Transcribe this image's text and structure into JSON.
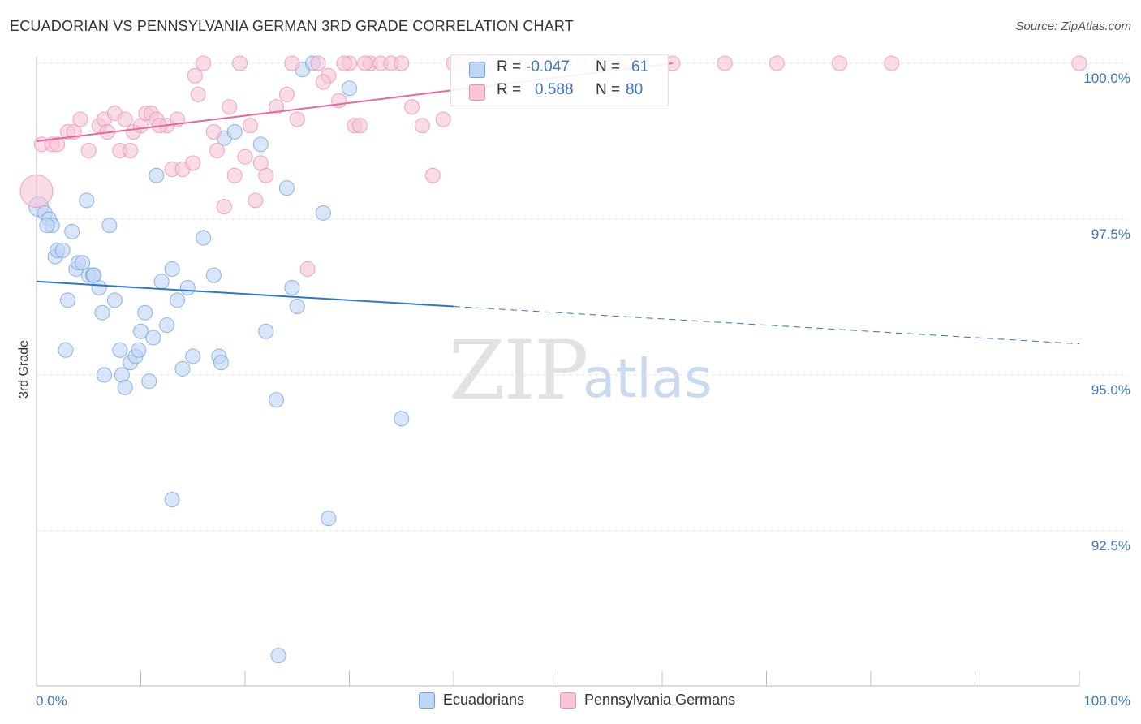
{
  "title": "ECUADORIAN VS PENNSYLVANIA GERMAN 3RD GRADE CORRELATION CHART",
  "source": "Source: ZipAtlas.com",
  "watermark": {
    "zip": "ZIP",
    "atlas": "atlas"
  },
  "colors": {
    "blue": "#6fa3e0",
    "blue_fill": "#bfd6f5",
    "blue_line": "#2f74cf",
    "pink": "#eb8fb1",
    "pink_fill": "#f7c5d6",
    "pink_line": "#e8679a",
    "axis_text": "#3b72c4"
  },
  "stats": {
    "r_label": "R =",
    "n_label": "N =",
    "rows": [
      {
        "r": "-0.047",
        "n": "61"
      },
      {
        "r": "0.588",
        "n": "80"
      }
    ]
  },
  "legend": {
    "ecuadorians": "Ecuadorians",
    "pennsylvania": "Pennsylvania Germans"
  },
  "chart_data": {
    "type": "scatter",
    "title": "ECUADORIAN VS PENNSYLVANIA GERMAN 3RD GRADE CORRELATION CHART",
    "xlabel": "",
    "ylabel": "3rd Grade",
    "xlim": [
      0,
      100
    ],
    "ylim": [
      90.4,
      100.3
    ],
    "x_tick_labels": {
      "left": "0.0%",
      "right": "100.0%"
    },
    "y_ticks": [
      {
        "value": 100.0,
        "label": "100.0%"
      },
      {
        "value": 97.5,
        "label": "97.5%"
      },
      {
        "value": 95.0,
        "label": "95.0%"
      },
      {
        "value": 92.5,
        "label": "92.5%"
      }
    ],
    "series": [
      {
        "name": "Ecuadorians",
        "trend": {
          "x": [
            0,
            40,
            100
          ],
          "y": [
            96.5,
            96.1,
            95.5
          ],
          "solid_until": 40
        },
        "points": [
          [
            0.2,
            97.7
          ],
          [
            0.8,
            97.6
          ],
          [
            1.2,
            97.5
          ],
          [
            1.5,
            97.4
          ],
          [
            1.8,
            96.9
          ],
          [
            2.0,
            97.0
          ],
          [
            2.5,
            97.0
          ],
          [
            3.4,
            97.3
          ],
          [
            3.8,
            96.7
          ],
          [
            4.0,
            96.8
          ],
          [
            4.4,
            96.8
          ],
          [
            5.0,
            96.6
          ],
          [
            5.4,
            96.6
          ],
          [
            6.0,
            96.4
          ],
          [
            6.3,
            96.0
          ],
          [
            7.0,
            97.4
          ],
          [
            7.5,
            96.2
          ],
          [
            8.2,
            95.0
          ],
          [
            8.5,
            94.8
          ],
          [
            9.0,
            95.2
          ],
          [
            9.5,
            95.3
          ],
          [
            10.0,
            95.7
          ],
          [
            10.4,
            96.0
          ],
          [
            10.8,
            94.9
          ],
          [
            11.2,
            95.6
          ],
          [
            12.0,
            96.5
          ],
          [
            12.5,
            95.8
          ],
          [
            13.0,
            96.7
          ],
          [
            13.5,
            96.2
          ],
          [
            14.0,
            95.1
          ],
          [
            14.5,
            96.4
          ],
          [
            15.0,
            95.3
          ],
          [
            16.0,
            97.2
          ],
          [
            17.0,
            96.6
          ],
          [
            17.5,
            95.3
          ],
          [
            17.7,
            95.2
          ],
          [
            18.0,
            98.8
          ],
          [
            19.0,
            98.9
          ],
          [
            21.5,
            98.7
          ],
          [
            22.0,
            95.7
          ],
          [
            24.0,
            98.0
          ],
          [
            25.5,
            99.9
          ],
          [
            26.5,
            100.0
          ],
          [
            23.0,
            94.6
          ],
          [
            24.5,
            96.4
          ],
          [
            25.0,
            96.1
          ],
          [
            27.5,
            97.6
          ],
          [
            28.0,
            92.7
          ],
          [
            30.0,
            99.6
          ],
          [
            35.0,
            94.3
          ],
          [
            13.0,
            93.0
          ],
          [
            23.2,
            90.5
          ],
          [
            4.8,
            97.8
          ],
          [
            3.0,
            96.2
          ],
          [
            2.8,
            95.4
          ],
          [
            6.5,
            95.0
          ],
          [
            9.8,
            95.4
          ],
          [
            1.0,
            97.4
          ],
          [
            5.5,
            96.6
          ],
          [
            11.5,
            98.2
          ],
          [
            8.0,
            95.4
          ]
        ]
      },
      {
        "name": "Pennsylvania Germans",
        "trend": {
          "x": [
            0,
            61
          ],
          "y": [
            98.75,
            100.0
          ]
        },
        "points": [
          [
            0.0,
            97.95
          ],
          [
            0.5,
            98.7
          ],
          [
            1.5,
            98.7
          ],
          [
            2.0,
            98.7
          ],
          [
            3.0,
            98.9
          ],
          [
            3.6,
            98.9
          ],
          [
            4.2,
            99.1
          ],
          [
            5.0,
            98.6
          ],
          [
            6.0,
            99.0
          ],
          [
            6.5,
            99.1
          ],
          [
            7.5,
            99.2
          ],
          [
            8.0,
            98.6
          ],
          [
            8.5,
            99.1
          ],
          [
            9.3,
            98.9
          ],
          [
            10.0,
            99.0
          ],
          [
            10.5,
            99.2
          ],
          [
            11.0,
            99.2
          ],
          [
            11.5,
            99.1
          ],
          [
            12.5,
            99.0
          ],
          [
            13.0,
            98.3
          ],
          [
            13.5,
            99.1
          ],
          [
            14.0,
            98.3
          ],
          [
            15.0,
            98.4
          ],
          [
            15.5,
            99.5
          ],
          [
            16.0,
            100.0
          ],
          [
            17.0,
            98.9
          ],
          [
            17.3,
            98.6
          ],
          [
            18.0,
            97.7
          ],
          [
            18.5,
            99.3
          ],
          [
            19.0,
            98.2
          ],
          [
            20.0,
            98.5
          ],
          [
            20.5,
            99.0
          ],
          [
            21.0,
            97.8
          ],
          [
            22.0,
            98.2
          ],
          [
            23.0,
            99.3
          ],
          [
            24.0,
            99.5
          ],
          [
            25.0,
            99.1
          ],
          [
            26.0,
            96.7
          ],
          [
            27.0,
            100.0
          ],
          [
            28.0,
            99.8
          ],
          [
            29.0,
            99.4
          ],
          [
            30.0,
            100.0
          ],
          [
            30.5,
            99.0
          ],
          [
            31.0,
            99.0
          ],
          [
            32.0,
            100.0
          ],
          [
            33.0,
            100.0
          ],
          [
            34.0,
            100.0
          ],
          [
            35.0,
            100.0
          ],
          [
            36.0,
            99.3
          ],
          [
            37.0,
            99.0
          ],
          [
            38.0,
            98.2
          ],
          [
            39.0,
            99.1
          ],
          [
            40.0,
            100.0
          ],
          [
            41.0,
            100.0
          ],
          [
            43.0,
            100.0
          ],
          [
            45.0,
            100.0
          ],
          [
            47.0,
            100.0
          ],
          [
            48.0,
            100.0
          ],
          [
            50.0,
            100.0
          ],
          [
            52.0,
            100.0
          ],
          [
            54.0,
            100.0
          ],
          [
            56.0,
            100.0
          ],
          [
            58.0,
            100.0
          ],
          [
            61.0,
            100.0
          ],
          [
            66.0,
            100.0
          ],
          [
            71.0,
            100.0
          ],
          [
            77.0,
            100.0
          ],
          [
            82.0,
            100.0
          ],
          [
            100.0,
            100.0
          ],
          [
            19.5,
            100.0
          ],
          [
            27.5,
            99.7
          ],
          [
            29.5,
            100.0
          ],
          [
            31.5,
            100.0
          ],
          [
            21.5,
            98.4
          ],
          [
            11.8,
            99.0
          ],
          [
            15.2,
            99.8
          ],
          [
            6.8,
            98.9
          ],
          [
            9.0,
            98.6
          ],
          [
            40.5,
            100.0
          ],
          [
            24.5,
            100.0
          ]
        ]
      }
    ]
  }
}
